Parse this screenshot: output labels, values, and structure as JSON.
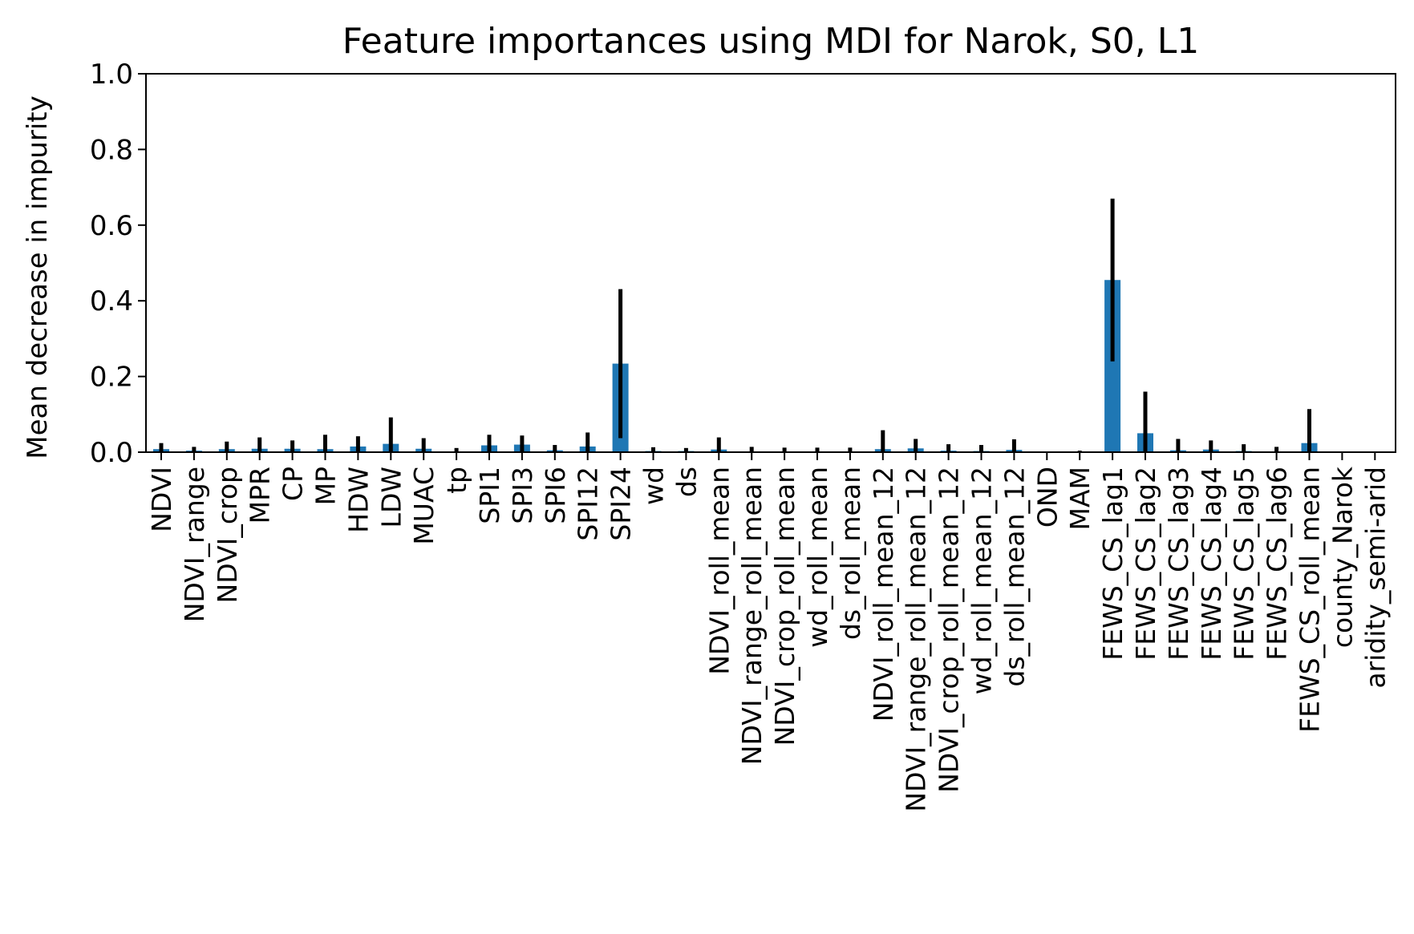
{
  "chart_data": {
    "type": "bar",
    "title": "Feature importances using MDI for Narok, S0, L1",
    "ylabel": "Mean decrease in impurity",
    "xlabel": "",
    "ylim": [
      0,
      1.0
    ],
    "yticks": [
      "0.0",
      "0.2",
      "0.4",
      "0.6",
      "0.8",
      "1.0"
    ],
    "grid": false,
    "bar_color": "#1f77b4",
    "error_color": "#000000",
    "categories": [
      "NDVI",
      "NDVI_range",
      "NDVI_crop",
      "MPR",
      "CP",
      "MP",
      "HDW",
      "LDW",
      "MUAC",
      "tp",
      "SPI1",
      "SPI3",
      "SPI6",
      "SPI12",
      "SPI24",
      "wd",
      "ds",
      "NDVI_roll_mean",
      "NDVI_range_roll_mean",
      "NDVI_crop_roll_mean",
      "wd_roll_mean",
      "ds_roll_mean",
      "NDVI_roll_mean_12",
      "NDVI_range_roll_mean_12",
      "NDVI_crop_roll_mean_12",
      "wd_roll_mean_12",
      "ds_roll_mean_12",
      "OND",
      "MAM",
      "FEWS_CS_lag1",
      "FEWS_CS_lag2",
      "FEWS_CS_lag3",
      "FEWS_CS_lag4",
      "FEWS_CS_lag5",
      "FEWS_CS_lag6",
      "FEWS_CS_roll_mean",
      "county_Narok",
      "aridity_semi-arid"
    ],
    "values": [
      0.008,
      0.004,
      0.008,
      0.009,
      0.009,
      0.008,
      0.015,
      0.022,
      0.009,
      0.001,
      0.018,
      0.02,
      0.005,
      0.015,
      0.234,
      0.003,
      0.003,
      0.007,
      0.002,
      0.002,
      0.002,
      0.002,
      0.008,
      0.01,
      0.004,
      0.003,
      0.006,
      0.0,
      0.001,
      0.455,
      0.05,
      0.005,
      0.007,
      0.003,
      0.002,
      0.024,
      0.0,
      0.0
    ],
    "errors": [
      0.016,
      0.01,
      0.02,
      0.03,
      0.022,
      0.038,
      0.027,
      0.07,
      0.028,
      0.01,
      0.028,
      0.024,
      0.014,
      0.037,
      0.197,
      0.01,
      0.008,
      0.032,
      0.012,
      0.01,
      0.01,
      0.01,
      0.05,
      0.025,
      0.017,
      0.016,
      0.028,
      0.0,
      0.003,
      0.215,
      0.11,
      0.03,
      0.024,
      0.018,
      0.012,
      0.09,
      0.0,
      0.0
    ]
  }
}
